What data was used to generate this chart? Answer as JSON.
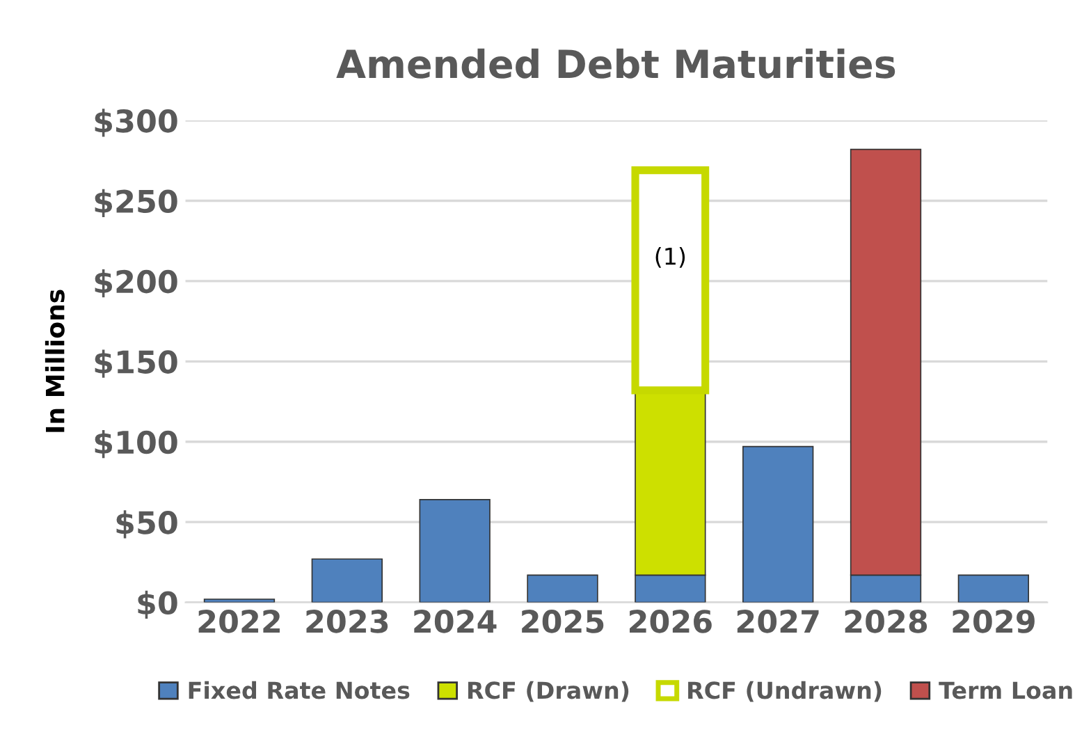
{
  "chart_data": {
    "type": "bar",
    "title": "Amended Debt Maturities",
    "ylabel": "In Millions",
    "categories": [
      "2022",
      "2023",
      "2024",
      "2025",
      "2026",
      "2027",
      "2028",
      "2029"
    ],
    "series": [
      {
        "name": "Fixed Rate Notes",
        "color": "#4f81bd",
        "values": [
          2,
          27,
          64,
          17,
          17,
          97,
          17,
          17
        ]
      },
      {
        "name": "RCF (Drawn)",
        "color": "#cde000",
        "values": [
          null,
          null,
          null,
          null,
          115,
          null,
          null,
          null
        ]
      },
      {
        "name": "RCF (Undrawn)",
        "color": "#c6d900",
        "line_style": "solid",
        "values": [
          null,
          null,
          null,
          null,
          137,
          null,
          null,
          null
        ]
      },
      {
        "name": "Term Loan",
        "color": "#c0504d",
        "values": [
          null,
          null,
          null,
          null,
          null,
          null,
          265,
          null
        ]
      }
    ],
    "stacked": true,
    "ylim": [
      0,
      300
    ],
    "yticks": [
      {
        "value": 0,
        "label": "$0"
      },
      {
        "value": 50,
        "label": "$50"
      },
      {
        "value": 100,
        "label": "$100"
      },
      {
        "value": 150,
        "label": "$150"
      },
      {
        "value": 200,
        "label": "$200"
      },
      {
        "value": 250,
        "label": "$250"
      },
      {
        "value": 300,
        "label": "$300"
      }
    ],
    "grid": "y",
    "legend": "bottom",
    "annotations": [
      "(1)"
    ]
  }
}
